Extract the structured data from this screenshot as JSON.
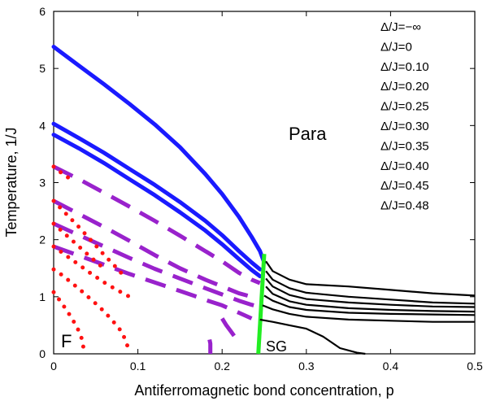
{
  "chart_data": {
    "type": "line",
    "xlabel": "Antiferromagnetic bond concentration,  p",
    "ylabel": "Temperature, 1/J",
    "xlim": [
      0,
      0.5
    ],
    "ylim": [
      0,
      6
    ],
    "x_ticks": [
      "0",
      "0.1",
      "0.2",
      "0.3",
      "0.4",
      "0.5"
    ],
    "y_ticks": [
      "0",
      "1",
      "2",
      "3",
      "4",
      "5",
      "6"
    ],
    "x_tick_values": [
      0,
      0.1,
      0.2,
      0.3,
      0.4,
      0.5
    ],
    "y_tick_values": [
      0,
      1,
      2,
      3,
      4,
      5,
      6
    ],
    "legend_entries": [
      "Δ/J=−∞",
      "Δ/J=0",
      "Δ/J=0.10",
      "Δ/J=0.20",
      "Δ/J=0.25",
      "Δ/J=0.30",
      "Δ/J=0.35",
      "Δ/J=0.40",
      "Δ/J=0.45",
      "Δ/J=0.48"
    ],
    "legend_placement": "top-right",
    "annotations": {
      "para": "Para",
      "ferro": "F",
      "spin_glass": "SG"
    },
    "grid": false,
    "colors": {
      "second_order": "#1a1aff",
      "first_order": "#9922cc",
      "tricritical": "#ff1111",
      "sg_boundary": "#22ee22",
      "sg_lines": "#000000"
    },
    "series": [
      {
        "style": "blue-solid",
        "x": [
          0,
          0.03,
          0.06,
          0.09,
          0.12,
          0.15,
          0.18,
          0.2,
          0.22,
          0.235,
          0.245,
          0.25
        ],
        "y": [
          5.38,
          5.05,
          4.72,
          4.38,
          4.02,
          3.62,
          3.15,
          2.8,
          2.4,
          2.05,
          1.8,
          1.6
        ]
      },
      {
        "style": "blue-solid",
        "x": [
          0,
          0.03,
          0.06,
          0.09,
          0.12,
          0.15,
          0.18,
          0.2,
          0.22,
          0.235,
          0.245
        ],
        "y": [
          4.03,
          3.78,
          3.52,
          3.24,
          2.96,
          2.66,
          2.33,
          2.08,
          1.8,
          1.6,
          1.48
        ]
      },
      {
        "style": "blue-solid",
        "x": [
          0,
          0.03,
          0.06,
          0.09,
          0.12,
          0.15,
          0.18,
          0.2,
          0.22,
          0.235,
          0.245
        ],
        "y": [
          3.84,
          3.6,
          3.34,
          3.06,
          2.78,
          2.48,
          2.16,
          1.92,
          1.66,
          1.47,
          1.36
        ]
      },
      {
        "style": "purple-dashed-then-blue",
        "x": [
          0,
          0.03,
          0.06,
          0.09,
          0.12,
          0.15,
          0.18,
          0.2,
          0.22,
          0.235,
          0.245
        ],
        "y": [
          3.28,
          3.06,
          2.82,
          2.58,
          2.33,
          2.07,
          1.8,
          1.62,
          1.42,
          1.3,
          1.24
        ]
      },
      {
        "style": "purple-dashed-then-blue",
        "x": [
          0,
          0.03,
          0.06,
          0.09,
          0.12,
          0.15,
          0.18,
          0.2,
          0.22,
          0.24
        ],
        "y": [
          2.68,
          2.45,
          2.22,
          1.98,
          1.73,
          1.5,
          1.3,
          1.18,
          1.06,
          0.98
        ]
      },
      {
        "style": "purple-dashed-then-blue",
        "x": [
          0,
          0.03,
          0.06,
          0.09,
          0.12,
          0.15,
          0.18,
          0.2,
          0.22,
          0.235,
          0.245
        ],
        "y": [
          2.28,
          2.08,
          1.88,
          1.68,
          1.49,
          1.32,
          1.15,
          1.04,
          0.93,
          0.86,
          0.82
        ]
      },
      {
        "style": "purple-dashed",
        "x": [
          0,
          0.03,
          0.06,
          0.09,
          0.12,
          0.15,
          0.17,
          0.185,
          0.2,
          0.22,
          0.235
        ],
        "y": [
          1.88,
          1.72,
          1.56,
          1.4,
          1.25,
          1.1,
          1.0,
          0.92,
          0.85,
          0.72,
          0.62
        ]
      },
      {
        "style": "purple-dashed",
        "x": [
          0.2,
          0.205,
          0.21,
          0.215,
          0.22
        ],
        "y": [
          0.62,
          0.5,
          0.4,
          0.3,
          0.22
        ]
      },
      {
        "style": "purple-dashed",
        "x": [
          0.185,
          0.186,
          0.186,
          0.186
        ],
        "y": [
          0.25,
          0.18,
          0.1,
          0.0
        ]
      },
      {
        "style": "red-dotted",
        "x": [
          0,
          0.01,
          0.02,
          0.03,
          0.04,
          0.05,
          0.06,
          0.07,
          0.08,
          0.085,
          0.088,
          0.089
        ],
        "y": [
          1.48,
          1.38,
          1.26,
          1.14,
          1.01,
          0.88,
          0.74,
          0.58,
          0.4,
          0.25,
          0.12,
          0.02
        ]
      },
      {
        "style": "red-dotted",
        "x": [
          0,
          0.01,
          0.02,
          0.028,
          0.033,
          0.035,
          0.036
        ],
        "y": [
          1.08,
          0.88,
          0.66,
          0.46,
          0.28,
          0.14,
          0.02
        ]
      },
      {
        "style": "red-dotted",
        "x": [
          0,
          0.015,
          0.03,
          0.045,
          0.06,
          0.07,
          0.08
        ],
        "y": [
          2.68,
          2.45,
          2.22,
          1.98,
          1.73,
          1.58,
          1.42
        ]
      },
      {
        "style": "red-dotted",
        "x": [
          0,
          0.015,
          0.03,
          0.045,
          0.06
        ],
        "y": [
          2.28,
          2.08,
          1.88,
          1.68,
          1.49
        ]
      },
      {
        "style": "red-dotted",
        "x": [
          0,
          0.015,
          0.03,
          0.045,
          0.06,
          0.075,
          0.09
        ],
        "y": [
          1.88,
          1.72,
          1.56,
          1.4,
          1.25,
          1.12,
          1.0
        ]
      },
      {
        "style": "red-dotted",
        "x": [
          0,
          0.01,
          0.02
        ],
        "y": [
          3.28,
          3.16,
          3.06
        ]
      },
      {
        "style": "green-solid",
        "x": [
          0.25,
          0.243
        ],
        "y": [
          1.75,
          0.0
        ]
      },
      {
        "style": "black-solid",
        "x": [
          0.252,
          0.26,
          0.28,
          0.3,
          0.35,
          0.4,
          0.45,
          0.5
        ],
        "y": [
          1.62,
          1.45,
          1.3,
          1.22,
          1.18,
          1.12,
          1.06,
          1.02
        ]
      },
      {
        "style": "black-solid",
        "x": [
          0.252,
          0.26,
          0.28,
          0.3,
          0.35,
          0.4,
          0.45,
          0.5
        ],
        "y": [
          1.45,
          1.3,
          1.15,
          1.07,
          1.0,
          0.95,
          0.9,
          0.88
        ]
      },
      {
        "style": "black-solid",
        "x": [
          0.252,
          0.26,
          0.28,
          0.3,
          0.35,
          0.4,
          0.45,
          0.5
        ],
        "y": [
          1.32,
          1.18,
          1.03,
          0.96,
          0.9,
          0.86,
          0.83,
          0.82
        ]
      },
      {
        "style": "black-solid",
        "x": [
          0.252,
          0.26,
          0.28,
          0.3,
          0.35,
          0.4,
          0.45,
          0.5
        ],
        "y": [
          1.18,
          1.05,
          0.92,
          0.86,
          0.8,
          0.77,
          0.75,
          0.74
        ]
      },
      {
        "style": "black-solid",
        "x": [
          0.25,
          0.26,
          0.28,
          0.3,
          0.35,
          0.4,
          0.45,
          0.5
        ],
        "y": [
          1.02,
          0.93,
          0.82,
          0.77,
          0.72,
          0.7,
          0.69,
          0.68
        ]
      },
      {
        "style": "black-solid",
        "x": [
          0.248,
          0.26,
          0.28,
          0.3,
          0.35,
          0.4,
          0.45,
          0.5
        ],
        "y": [
          0.85,
          0.78,
          0.7,
          0.65,
          0.6,
          0.58,
          0.56,
          0.56
        ]
      },
      {
        "style": "black-solid",
        "x": [
          0.245,
          0.26,
          0.28,
          0.3,
          0.32,
          0.34,
          0.36,
          0.37
        ],
        "y": [
          0.6,
          0.56,
          0.5,
          0.44,
          0.3,
          0.1,
          0.02,
          0.0
        ]
      }
    ]
  }
}
